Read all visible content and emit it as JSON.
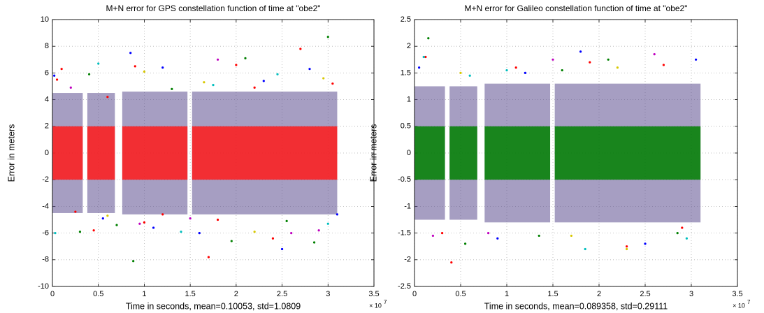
{
  "chart_data": [
    {
      "type": "scatter",
      "title": "M+N error for GPS constellation function of time at \"obe2\"",
      "x_label": "Time in seconds, mean=0.10053, std=1.0809",
      "y_label": "Error in meters",
      "x_multiplier": "× 10",
      "x_multiplier_exponent": "7",
      "xlim": [
        0,
        3.5
      ],
      "xticks": [
        0,
        0.5,
        1,
        1.5,
        2,
        2.5,
        3,
        3.5
      ],
      "ylim": [
        -10,
        10
      ],
      "yticks": [
        -10,
        -8,
        -6,
        -4,
        -2,
        0,
        2,
        4,
        6,
        8,
        10
      ],
      "grid": true,
      "envelope_color": "#5d4f8f",
      "core_color": "#ff1a1a",
      "segments": [
        {
          "x0": 0,
          "x1": 0.33,
          "ymin": -4.5,
          "ymax": 4.5,
          "core_min": -2,
          "core_max": 2
        },
        {
          "x0": 0.38,
          "x1": 0.68,
          "ymin": -4.5,
          "ymax": 4.5,
          "core_min": -2,
          "core_max": 2
        },
        {
          "x0": 0.76,
          "x1": 1.47,
          "ymin": -4.6,
          "ymax": 4.6,
          "core_min": -2,
          "core_max": 2
        },
        {
          "x0": 1.52,
          "x1": 3.1,
          "ymin": -4.6,
          "ymax": 4.6,
          "core_min": -2,
          "core_max": 2
        }
      ],
      "series": [
        {
          "color": "#ff0000",
          "x": [
            0.05,
            0.1,
            0.45,
            0.9,
            1.0,
            1.7,
            2.0,
            2.7,
            2.4,
            3.05,
            0.6,
            1.2,
            2.2,
            0.25,
            1.8
          ],
          "y": [
            5.5,
            6.3,
            -5.8,
            6.5,
            -5.2,
            -7.8,
            6.6,
            7.8,
            -6.4,
            5.2,
            4.2,
            -4.6,
            4.9,
            -4.4,
            -5.0
          ]
        },
        {
          "color": "#008000",
          "x": [
            0.88,
            2.1,
            3.0,
            1.95,
            0.3,
            0.4,
            2.85,
            1.3,
            2.55,
            0.7
          ],
          "y": [
            -8.1,
            7.1,
            8.7,
            -6.6,
            -5.9,
            5.9,
            -6.7,
            4.8,
            -5.1,
            -5.4
          ]
        },
        {
          "color": "#0000ff",
          "x": [
            1.2,
            0.85,
            2.5,
            0.02,
            1.6,
            2.8,
            3.1,
            1.1,
            0.55,
            2.3
          ],
          "y": [
            6.4,
            7.5,
            -7.2,
            5.8,
            -6.0,
            6.3,
            -4.6,
            -5.6,
            -4.9,
            5.4
          ]
        },
        {
          "color": "#00bfbf",
          "x": [
            0.03,
            0.5,
            1.4,
            2.45,
            3.0,
            1.75
          ],
          "y": [
            -6.0,
            6.7,
            -5.9,
            5.9,
            -5.3,
            5.1
          ]
        },
        {
          "color": "#bf00bf",
          "x": [
            1.8,
            0.95,
            2.6,
            0.2,
            2.9,
            1.5
          ],
          "y": [
            7.0,
            -5.3,
            -6.0,
            4.9,
            -5.8,
            -4.9
          ]
        },
        {
          "color": "#d8c800",
          "x": [
            1.0,
            2.2,
            0.6,
            2.95,
            1.65
          ],
          "y": [
            6.1,
            -5.9,
            -4.7,
            5.6,
            5.3
          ]
        }
      ]
    },
    {
      "type": "scatter",
      "title": "M+N error for Galileo constellation function of time at \"obe2\"",
      "x_label": "Time in seconds, mean=0.089358, std=0.29111",
      "y_label": "Error in meters",
      "x_multiplier": "× 10",
      "x_multiplier_exponent": "7",
      "xlim": [
        0,
        3.5
      ],
      "xticks": [
        0,
        0.5,
        1,
        1.5,
        2,
        2.5,
        3,
        3.5
      ],
      "ylim": [
        -2.5,
        2.5
      ],
      "yticks": [
        -2.5,
        -2,
        -1.5,
        -1,
        -0.5,
        0,
        0.5,
        1,
        1.5,
        2,
        2.5
      ],
      "grid": true,
      "envelope_color": "#5d4f8f",
      "core_color": "#008000",
      "segments": [
        {
          "x0": 0,
          "x1": 0.33,
          "ymin": -1.25,
          "ymax": 1.25,
          "core_min": -0.5,
          "core_max": 0.5
        },
        {
          "x0": 0.38,
          "x1": 0.68,
          "ymin": -1.25,
          "ymax": 1.25,
          "core_min": -0.5,
          "core_max": 0.5
        },
        {
          "x0": 0.76,
          "x1": 1.47,
          "ymin": -1.3,
          "ymax": 1.3,
          "core_min": -0.5,
          "core_max": 0.5
        },
        {
          "x0": 1.52,
          "x1": 3.1,
          "ymin": -1.3,
          "ymax": 1.3,
          "core_min": -0.5,
          "core_max": 0.5
        }
      ],
      "series": [
        {
          "color": "#ff0000",
          "x": [
            0.12,
            0.4,
            1.1,
            2.3,
            1.9,
            2.9,
            0.3,
            2.7
          ],
          "y": [
            1.8,
            -2.05,
            1.6,
            -1.75,
            1.7,
            -1.4,
            -1.5,
            1.65
          ]
        },
        {
          "color": "#008000",
          "x": [
            0.15,
            0.55,
            1.35,
            2.1,
            2.85,
            1.6
          ],
          "y": [
            2.15,
            -1.7,
            -1.55,
            1.75,
            -1.5,
            1.55
          ]
        },
        {
          "color": "#0000ff",
          "x": [
            0.05,
            0.9,
            1.8,
            2.5,
            3.05,
            1.2
          ],
          "y": [
            1.6,
            -1.6,
            1.9,
            -1.7,
            1.75,
            1.5
          ]
        },
        {
          "color": "#00bfbf",
          "x": [
            0.1,
            1.0,
            1.85,
            2.95,
            0.6
          ],
          "y": [
            1.8,
            1.55,
            -1.8,
            -1.6,
            1.45
          ]
        },
        {
          "color": "#bf00bf",
          "x": [
            0.2,
            1.5,
            2.6,
            0.8
          ],
          "y": [
            -1.55,
            1.75,
            1.85,
            -1.5
          ]
        },
        {
          "color": "#d8c800",
          "x": [
            0.5,
            1.7,
            2.3,
            2.2
          ],
          "y": [
            1.5,
            -1.55,
            -1.8,
            1.6
          ]
        }
      ]
    }
  ]
}
